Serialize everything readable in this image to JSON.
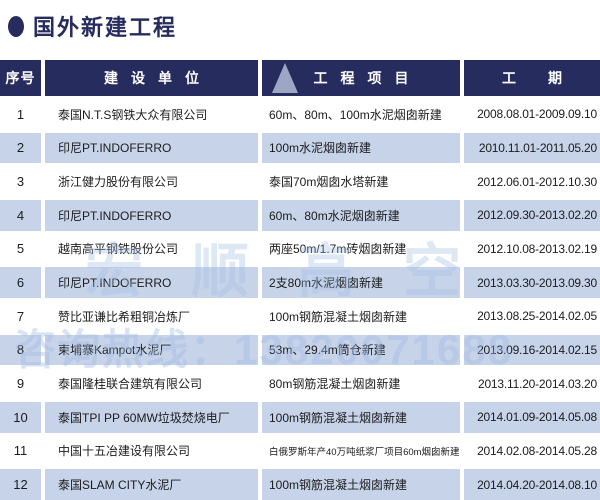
{
  "title": {
    "text": "国外新建工程"
  },
  "table": {
    "headers": [
      {
        "label": "序号"
      },
      {
        "label": "建设单位"
      },
      {
        "label": "工程项目"
      },
      {
        "label": "工期"
      }
    ],
    "rows": [
      {
        "no": "1",
        "unit": "泰国N.T.S钢铁大众有限公司",
        "project": "60m、80m、100m水泥烟囱新建",
        "period": "2008.08.01-2009.09.10"
      },
      {
        "no": "2",
        "unit": "印尼PT.INDOFERRO",
        "project": "100m水泥烟囱新建",
        "period": "2010.11.01-2011.05.20"
      },
      {
        "no": "3",
        "unit": "浙江健力股份有限公司",
        "project": "泰国70m烟囱水塔新建",
        "period": "2012.06.01-2012.10.30"
      },
      {
        "no": "4",
        "unit": "印尼PT.INDOFERRO",
        "project": "60m、80m水泥烟囱新建",
        "period": "2012.09.30-2013.02.20"
      },
      {
        "no": "5",
        "unit": "越南高平钢铁股份公司",
        "project": "两座50m/1.7m砖烟囱新建",
        "period": "2012.10.08-2013.02.19"
      },
      {
        "no": "6",
        "unit": "印尼PT.INDOFERRO",
        "project": "2支80m水泥烟囱新建",
        "period": "2013.03.30-2013.09.30"
      },
      {
        "no": "7",
        "unit": "赞比亚谦比希粗铜冶炼厂",
        "project": "100m钢筋混凝土烟囱新建",
        "period": "2013.08.25-2014.02.05"
      },
      {
        "no": "8",
        "unit": "柬埔寨Kampot水泥厂",
        "project": "53m、29.4m筒仓新建",
        "period": "2013.09.16-2014.02.15"
      },
      {
        "no": "9",
        "unit": "泰国隆桂联合建筑有限公司",
        "project": "80m钢筋混凝土烟囱新建",
        "period": "2013.11.20-2014.03.20"
      },
      {
        "no": "10",
        "unit": "泰国TPI PP 60MW垃圾焚烧电厂",
        "project": "100m钢筋混凝土烟囱新建",
        "period": "2014.01.09-2014.05.08"
      },
      {
        "no": "11",
        "unit": "中国十五冶建设有限公司",
        "project": "白俄罗斯年产40万吨纸浆厂项目60m烟囱新建",
        "period": "2014.02.08-2014.05.28"
      },
      {
        "no": "12",
        "unit": "泰国SLAM CITY水泥厂",
        "project": "100m钢筋混凝土烟囱新建",
        "period": "2014.04.20-2014.08.10"
      }
    ]
  },
  "watermark": {
    "line1": "宏顺高空",
    "line2": "咨询热线：13820071688"
  },
  "colors": {
    "header_bg": "#272c5e",
    "alt_row_bg": "#c6d3e9",
    "title_color": "#272c5e",
    "text_color": "#1c1c1c",
    "watermark_color": "#a1bce2"
  }
}
